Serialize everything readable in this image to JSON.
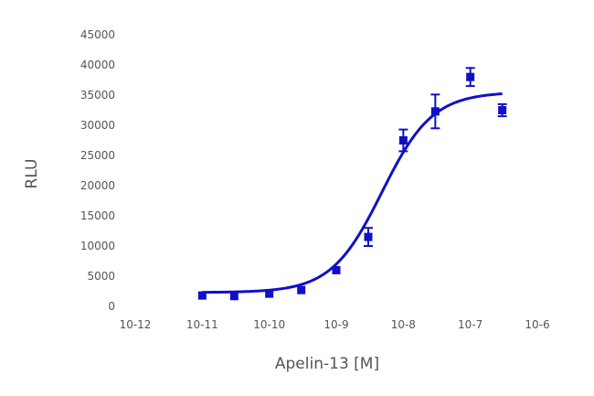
{
  "chart_data": {
    "type": "scatter",
    "title": "",
    "xlabel": "Apelin-13 [M]",
    "ylabel": "RLU",
    "x_scale": "log",
    "xlim": [
      1e-12,
      1e-06
    ],
    "ylim": [
      0,
      45000
    ],
    "grid": false,
    "x_ticks": [
      {
        "value": 1e-12,
        "label": "10-12"
      },
      {
        "value": 1e-11,
        "label": "10-11"
      },
      {
        "value": 1e-10,
        "label": "10-10"
      },
      {
        "value": 1e-09,
        "label": "10-9"
      },
      {
        "value": 1e-08,
        "label": "10-8"
      },
      {
        "value": 1e-07,
        "label": "10-7"
      },
      {
        "value": 1e-06,
        "label": "10-6"
      }
    ],
    "y_ticks": [
      {
        "value": 0,
        "label": "0"
      },
      {
        "value": 5000,
        "label": "5000"
      },
      {
        "value": 10000,
        "label": "10000"
      },
      {
        "value": 15000,
        "label": "15000"
      },
      {
        "value": 20000,
        "label": "20000"
      },
      {
        "value": 25000,
        "label": "25000"
      },
      {
        "value": 30000,
        "label": "30000"
      },
      {
        "value": 35000,
        "label": "35000"
      },
      {
        "value": 40000,
        "label": "40000"
      },
      {
        "value": 45000,
        "label": "45000"
      }
    ],
    "series": [
      {
        "color": "#1010c8",
        "marker": "square",
        "points": [
          {
            "x": 1e-11,
            "y": 1800,
            "err": 0
          },
          {
            "x": 3e-11,
            "y": 1700,
            "err": 0
          },
          {
            "x": 1e-10,
            "y": 2100,
            "err": 0
          },
          {
            "x": 3e-10,
            "y": 2700,
            "err": 0
          },
          {
            "x": 1e-09,
            "y": 6000,
            "err": 0
          },
          {
            "x": 3e-09,
            "y": 11500,
            "err": 1500
          },
          {
            "x": 1e-08,
            "y": 27500,
            "err": 1800
          },
          {
            "x": 3e-08,
            "y": 32300,
            "err": 2800
          },
          {
            "x": 1e-07,
            "y": 38000,
            "err": 1500
          },
          {
            "x": 3e-07,
            "y": 32500,
            "err": 1000
          }
        ]
      }
    ],
    "fit": {
      "model": "four-parameter logistic",
      "bottom": 2300,
      "top": 35500,
      "log_ec50": -8.32,
      "hill": 1.15,
      "x_range": [
        1e-11,
        3e-07
      ]
    }
  }
}
